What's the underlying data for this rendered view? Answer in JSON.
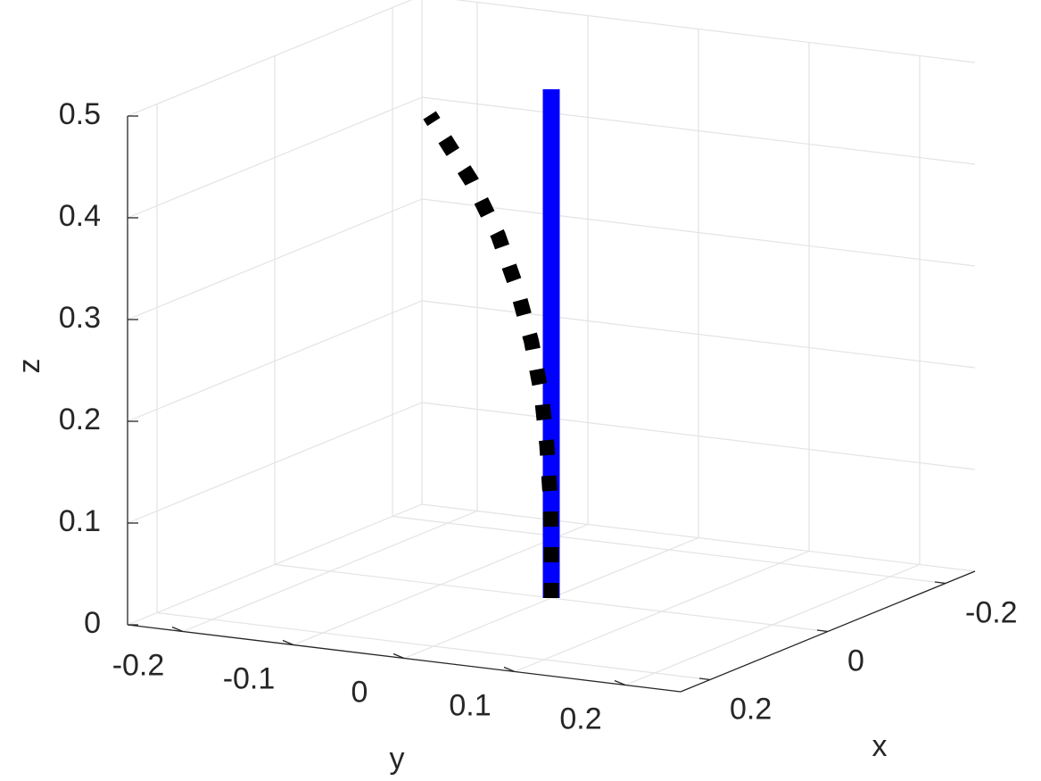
{
  "chart_data": {
    "type": "line3d",
    "xlabel": "x",
    "ylabel": "y",
    "zlabel": "z",
    "xlim": [
      -0.25,
      0.25
    ],
    "ylim": [
      -0.25,
      0.25
    ],
    "zlim": [
      0,
      0.5
    ],
    "xticks": [
      -0.2,
      0,
      0.2
    ],
    "yticks": [
      -0.2,
      -0.1,
      0,
      0.1,
      0.2
    ],
    "zticks": [
      0,
      0.1,
      0.2,
      0.3,
      0.4,
      0.5
    ],
    "grid": true,
    "series": [
      {
        "color": "#0000ff",
        "linestyle": "solid",
        "x": [
          0,
          0
        ],
        "y": [
          0,
          0
        ],
        "z": [
          0,
          0.5
        ]
      },
      {
        "color": "#000000",
        "linestyle": "dotted",
        "x": [
          0,
          0,
          0,
          0,
          0,
          0,
          0,
          0,
          0,
          0
        ],
        "y": [
          0,
          0,
          -0.001,
          -0.004,
          -0.009,
          -0.018,
          -0.031,
          -0.048,
          -0.072,
          -0.11
        ],
        "z": [
          0,
          0.05,
          0.1,
          0.15,
          0.2,
          0.25,
          0.3,
          0.35,
          0.4,
          0.46
        ]
      }
    ]
  }
}
